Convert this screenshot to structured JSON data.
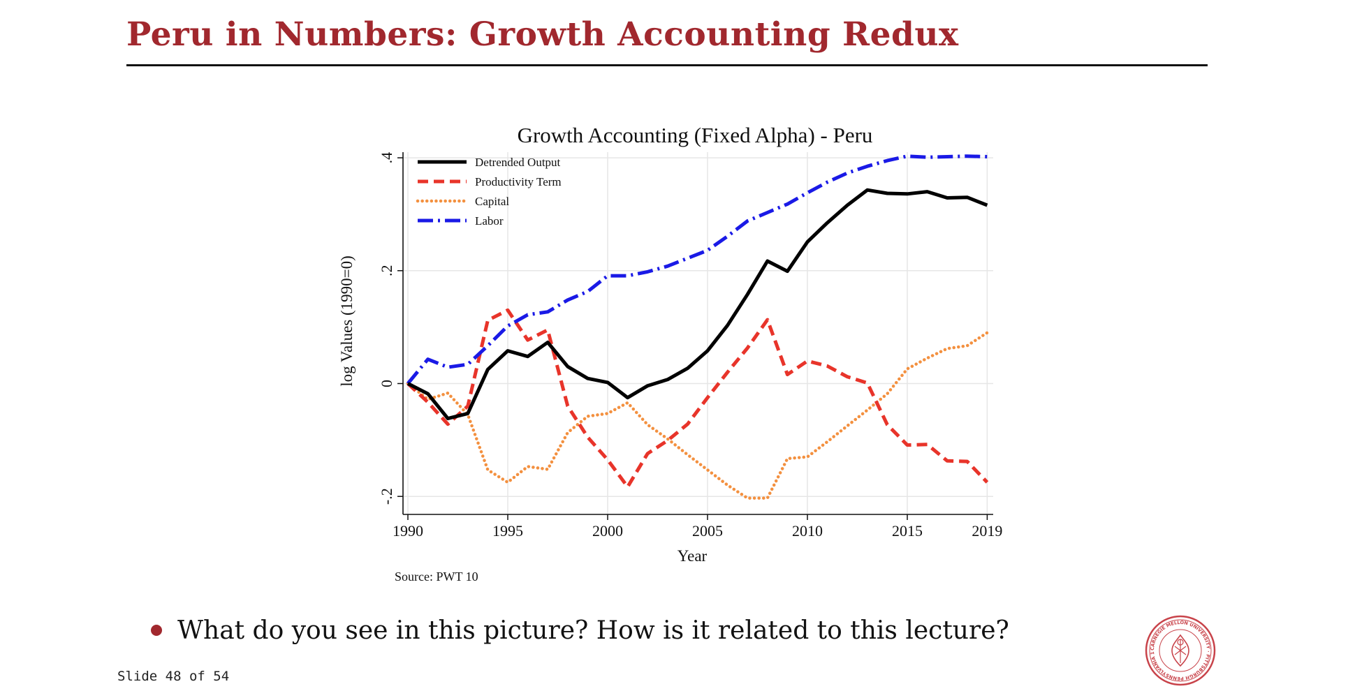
{
  "slide": {
    "title": "Peru in Numbers: Growth Accounting Redux",
    "bullet": "What do you see in this picture? How is it related to this lecture?",
    "counter": "Slide 48 of 54",
    "seal_text": "CARNEGIE MELLON UNIVERSITY · PITTSBURGH PENNSYLVANIA 1900",
    "accent_color": "#a1282e"
  },
  "chart_data": {
    "type": "line",
    "title": "Growth Accounting (Fixed Alpha) - Peru",
    "xlabel": "Year",
    "ylabel": "log Values (1990=0)",
    "source_note": "Source: PWT 10",
    "xlim": [
      1990,
      2019
    ],
    "ylim": [
      -0.2,
      0.4
    ],
    "xticks": [
      1990,
      1995,
      2000,
      2005,
      2010,
      2015,
      2019
    ],
    "xtick_labels": [
      "1990",
      "1995",
      "2000",
      "2005",
      "2010",
      "2015",
      "2019"
    ],
    "yticks": [
      -0.2,
      0,
      0.2,
      0.4
    ],
    "ytick_labels": [
      "-.2",
      "0",
      ".2",
      ".4"
    ],
    "grid": true,
    "legend_position": "top-left",
    "x": [
      1990,
      1991,
      1992,
      1993,
      1994,
      1995,
      1996,
      1997,
      1998,
      1999,
      2000,
      2001,
      2002,
      2003,
      2004,
      2005,
      2006,
      2007,
      2008,
      2009,
      2010,
      2011,
      2012,
      2013,
      2014,
      2015,
      2016,
      2017,
      2018,
      2019
    ],
    "series": [
      {
        "name": "Detrended Output",
        "color": "#000000",
        "style": "solid",
        "values": [
          0,
          -0.018,
          -0.062,
          -0.053,
          0.025,
          0.058,
          0.048,
          0.073,
          0.03,
          0.009,
          0.002,
          -0.025,
          -0.004,
          0.007,
          0.027,
          0.058,
          0.103,
          0.158,
          0.217,
          0.199,
          0.251,
          0.285,
          0.316,
          0.343,
          0.337,
          0.336,
          0.34,
          0.329,
          0.33,
          0.316
        ]
      },
      {
        "name": "Productivity Term",
        "color": "#e8342a",
        "style": "dash",
        "values": [
          0,
          -0.033,
          -0.072,
          -0.04,
          0.112,
          0.13,
          0.077,
          0.095,
          -0.04,
          -0.095,
          -0.135,
          -0.183,
          -0.124,
          -0.101,
          -0.072,
          -0.025,
          0.02,
          0.063,
          0.113,
          0.016,
          0.04,
          0.031,
          0.012,
          0.001,
          -0.073,
          -0.109,
          -0.108,
          -0.137,
          -0.138,
          -0.175
        ]
      },
      {
        "name": "Capital",
        "color": "#f3903f",
        "style": "dot",
        "values": [
          0,
          -0.028,
          -0.017,
          -0.055,
          -0.153,
          -0.175,
          -0.147,
          -0.152,
          -0.087,
          -0.058,
          -0.053,
          -0.034,
          -0.073,
          -0.098,
          -0.126,
          -0.153,
          -0.18,
          -0.203,
          -0.203,
          -0.133,
          -0.13,
          -0.103,
          -0.075,
          -0.047,
          -0.018,
          0.026,
          0.045,
          0.062,
          0.067,
          0.09
        ]
      },
      {
        "name": "Labor",
        "color": "#1a1ae6",
        "style": "dashdot",
        "values": [
          0,
          0.043,
          0.029,
          0.034,
          0.067,
          0.102,
          0.122,
          0.127,
          0.148,
          0.163,
          0.191,
          0.191,
          0.198,
          0.208,
          0.222,
          0.236,
          0.261,
          0.288,
          0.303,
          0.318,
          0.338,
          0.357,
          0.373,
          0.385,
          0.395,
          0.403,
          0.401,
          0.402,
          0.403,
          0.402
        ]
      }
    ]
  }
}
